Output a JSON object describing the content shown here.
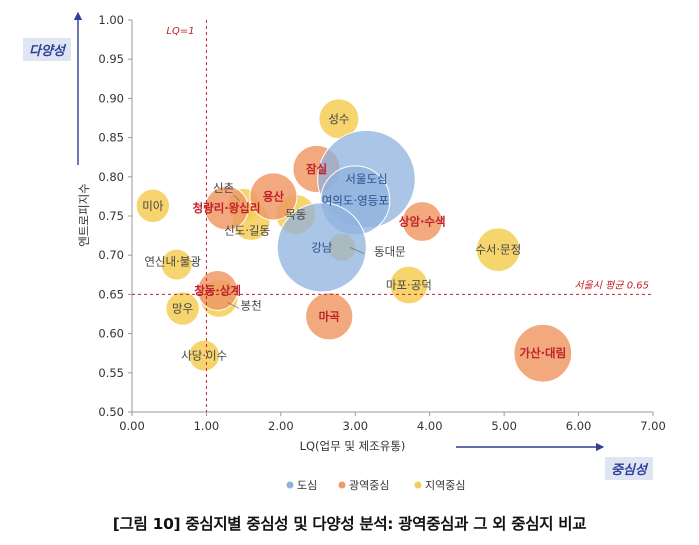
{
  "chart_data": {
    "type": "bubble",
    "xlabel": "LQ(업무 및 제조유통)",
    "ylabel": "엔트로피지수",
    "xlim": [
      0,
      7
    ],
    "ylim": [
      0.5,
      1.0
    ],
    "xticks": [
      "0.00",
      "1.00",
      "2.00",
      "3.00",
      "4.00",
      "5.00",
      "6.00",
      "7.00"
    ],
    "yticks": [
      "0.50",
      "0.55",
      "0.60",
      "0.65",
      "0.70",
      "0.75",
      "0.80",
      "0.85",
      "0.90",
      "0.95",
      "1.00"
    ],
    "grid": false,
    "legend_position": "bottom",
    "axis_tags": {
      "y": "다양성",
      "x": "중심성"
    },
    "reference_lines": [
      {
        "axis": "x",
        "value": 1.0,
        "label": "LQ=1"
      },
      {
        "axis": "y",
        "value": 0.65,
        "label": "서울시 평균 0.65"
      }
    ],
    "colors": {
      "도심": "#8fb1dd",
      "광역중심": "#ef9a66",
      "지역중심": "#f5cd55",
      "label_red": "#c0212b",
      "tag": "#2f3f9a"
    },
    "series": [
      {
        "name": "도심",
        "points": [
          {
            "label": "서울도심",
            "x": 3.15,
            "y": 0.797,
            "size": 60
          },
          {
            "label": "여의도·영등포",
            "x": 3.0,
            "y": 0.77,
            "size": 30
          },
          {
            "label": "강남",
            "x": 2.55,
            "y": 0.71,
            "size": 50
          }
        ]
      },
      {
        "name": "광역중심",
        "points": [
          {
            "label": "잠실",
            "x": 2.48,
            "y": 0.81,
            "size": 14
          },
          {
            "label": "용산",
            "x": 1.9,
            "y": 0.775,
            "size": 14
          },
          {
            "label": "청량리·왕십리",
            "x": 1.27,
            "y": 0.76,
            "size": 12
          },
          {
            "label": "상암·수색",
            "x": 3.9,
            "y": 0.743,
            "size": 10
          },
          {
            "label": "창동·상계",
            "x": 1.15,
            "y": 0.655,
            "size": 10
          },
          {
            "label": "마곡",
            "x": 2.65,
            "y": 0.622,
            "size": 14
          },
          {
            "label": "가산·대림",
            "x": 5.52,
            "y": 0.575,
            "size": 21
          }
        ]
      },
      {
        "name": "지역중심",
        "points": [
          {
            "label": "성수",
            "x": 2.78,
            "y": 0.874,
            "size": 10
          },
          {
            "label": "신촌",
            "x": 1.5,
            "y": 0.764,
            "size": 7
          },
          {
            "label": "신도·길동",
            "x": 1.6,
            "y": 0.743,
            "size": 9
          },
          {
            "label": "목동",
            "x": 2.2,
            "y": 0.752,
            "size": 10
          },
          {
            "label": "미아",
            "x": 0.28,
            "y": 0.763,
            "size": 7
          },
          {
            "label": "동대문",
            "x": 2.82,
            "y": 0.71,
            "size": 5
          },
          {
            "label": "수서·문정",
            "x": 4.92,
            "y": 0.707,
            "size": 12
          },
          {
            "label": "연신내·불광",
            "x": 0.6,
            "y": 0.688,
            "size": 6
          },
          {
            "label": "마포·공덕",
            "x": 3.72,
            "y": 0.662,
            "size": 9
          },
          {
            "label": "봉천",
            "x": 1.17,
            "y": 0.645,
            "size": 9
          },
          {
            "label": "망우",
            "x": 0.68,
            "y": 0.632,
            "size": 7
          },
          {
            "label": "사당·이수",
            "x": 0.97,
            "y": 0.572,
            "size": 6
          }
        ]
      }
    ]
  },
  "caption": "[그림 10] 중심지별 중심성 및 다양성 분석: 광역중심과 그 외 중심지 비교"
}
